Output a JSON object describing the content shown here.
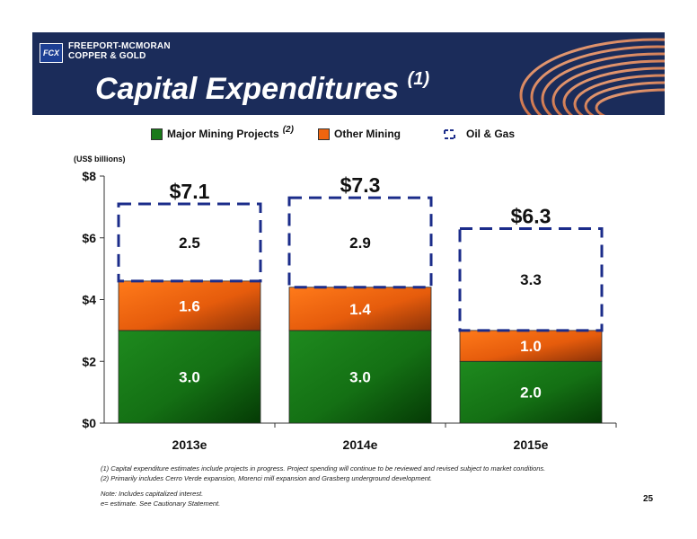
{
  "header": {
    "logo_mark": "FCX",
    "company_line1": "FREEPORT-MCMORAN",
    "company_line2": "COPPER & GOLD",
    "title": "Capital Expenditures",
    "title_note": "(1)",
    "banner_color": "#1b2c5a"
  },
  "legend": {
    "items": [
      {
        "label": "Major Mining Projects",
        "note": "(2)",
        "color": "#1a7a1a"
      },
      {
        "label": "Other Mining",
        "note": "",
        "color": "#f0650f"
      },
      {
        "label": "Oil & Gas",
        "note": "",
        "color": "#1b2c8a"
      }
    ]
  },
  "unit_label": "(US$ billions)",
  "chart_data": {
    "type": "bar",
    "stacked": true,
    "categories": [
      "2013e",
      "2014e",
      "2015e"
    ],
    "series": [
      {
        "name": "Major Mining Projects",
        "values": [
          3.0,
          3.0,
          2.0
        ],
        "labels": [
          "3.0",
          "3.0",
          "2.0"
        ],
        "color": "#1a7a1a"
      },
      {
        "name": "Other Mining",
        "values": [
          1.6,
          1.4,
          1.0
        ],
        "labels": [
          "1.6",
          "1.4",
          "1.0"
        ],
        "color": "#f0650f"
      },
      {
        "name": "Oil & Gas",
        "values": [
          2.5,
          2.9,
          3.3
        ],
        "labels": [
          "2.5",
          "2.9",
          "3.3"
        ],
        "color": "#1b2c8a",
        "style": "dashed-outline"
      }
    ],
    "totals": [
      "$7.1",
      "$7.3",
      "$6.3"
    ],
    "ylim": [
      0,
      8
    ],
    "yticks": [
      0,
      2,
      4,
      6,
      8
    ],
    "ytick_labels": [
      "$0",
      "$2",
      "$4",
      "$6",
      "$8"
    ],
    "grid": false
  },
  "footnotes": {
    "note1": "(1)  Capital expenditure estimates include projects in progress. Project spending will continue to be reviewed and revised subject to market conditions.",
    "note2": "(2)  Primarily includes Cerro Verde expansion, Morenci mill expansion and Grasberg underground development.",
    "note3": "Note: Includes capitalized interest.",
    "note4": "e= estimate. See Cautionary Statement."
  },
  "page_number": "25"
}
